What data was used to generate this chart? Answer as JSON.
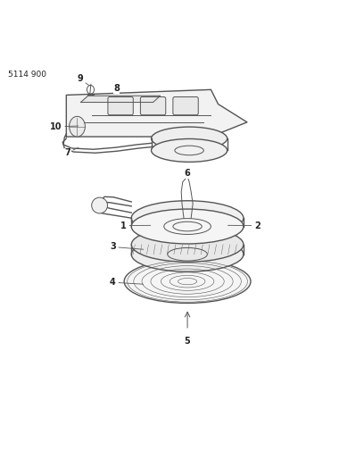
{
  "title": "5114 900",
  "background_color": "#ffffff",
  "line_color": "#555555",
  "text_color": "#222222",
  "figsize": [
    4.08,
    5.33
  ],
  "dpi": 100
}
